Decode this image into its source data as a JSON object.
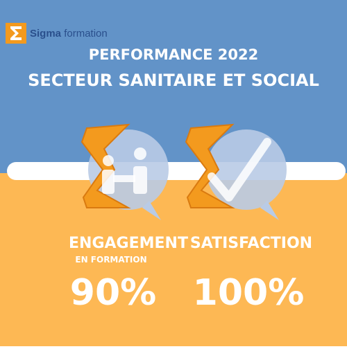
{
  "logo": {
    "name": "Sigma",
    "suffix": "formation"
  },
  "header": {
    "title": "PERFORMANCE 2022",
    "subtitle": "SECTEUR SANITAIRE ET SOCIAL"
  },
  "metrics": [
    {
      "label": "ENGAGEMENT",
      "sublabel": "EN FORMATION",
      "value": "90%"
    },
    {
      "label": "SATISFACTION",
      "value": "100%"
    }
  ]
}
